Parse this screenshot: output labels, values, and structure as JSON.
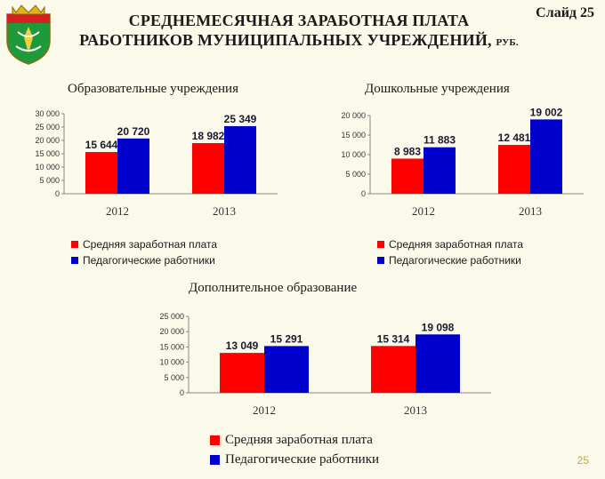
{
  "slide_label": "Слайд 25",
  "title_line1": "СРЕДНЕМЕСЯЧНАЯ ЗАРАБОТНАЯ ПЛАТА",
  "title_line2": "РАБОТНИКОВ МУНИЦИПАЛЬНЫХ УЧРЕЖДЕНИЙ,",
  "title_unit": "РУБ.",
  "page_number": "25",
  "colors": {
    "red": "#ff0000",
    "blue": "#0000cc",
    "background": "#fbf9ea"
  },
  "chart_data": [
    {
      "type": "bar",
      "title": "Образовательные учреждения",
      "categories": [
        "2012",
        "2013"
      ],
      "ylim": [
        0,
        30000
      ],
      "yticks": [
        "0",
        "5 000",
        "10 000",
        "15 000",
        "20 000",
        "25 000",
        "30 000"
      ],
      "series": [
        {
          "name": "Средняя заработная плата",
          "color": "#ff0000",
          "values": [
            15644,
            18982
          ],
          "labels": [
            "15 644",
            "18 982"
          ]
        },
        {
          "name": "Педагогические работники",
          "color": "#0000cc",
          "values": [
            20720,
            25349
          ],
          "labels": [
            "20 720",
            "25 349"
          ]
        }
      ],
      "legend": "bottom"
    },
    {
      "type": "bar",
      "title": "Дошкольные учреждения",
      "categories": [
        "2012",
        "2013"
      ],
      "ylim": [
        0,
        20000
      ],
      "yticks": [
        "0",
        "5 000",
        "10 000",
        "15 000",
        "20 000"
      ],
      "series": [
        {
          "name": "Средняя заработная плата",
          "color": "#ff0000",
          "values": [
            8983,
            12481
          ],
          "labels": [
            "8 983",
            "12 481"
          ]
        },
        {
          "name": "Педагогические работники",
          "color": "#0000cc",
          "values": [
            11883,
            19002
          ],
          "labels": [
            "11 883",
            "19 002"
          ]
        }
      ],
      "legend": "bottom"
    },
    {
      "type": "bar",
      "title": "Дополнительное образование",
      "categories": [
        "2012",
        "2013"
      ],
      "ylim": [
        0,
        25000
      ],
      "yticks": [
        "0",
        "5 000",
        "10 000",
        "15 000",
        "20 000",
        "25 000"
      ],
      "series": [
        {
          "name": "Средняя заработная плата",
          "color": "#ff0000",
          "values": [
            13049,
            15314
          ],
          "labels": [
            "13 049",
            "15 314"
          ]
        },
        {
          "name": "Педагогические работники",
          "color": "#0000cc",
          "values": [
            15291,
            19098
          ],
          "labels": [
            "15 291",
            "19 098"
          ]
        }
      ],
      "legend": "bottom"
    }
  ]
}
